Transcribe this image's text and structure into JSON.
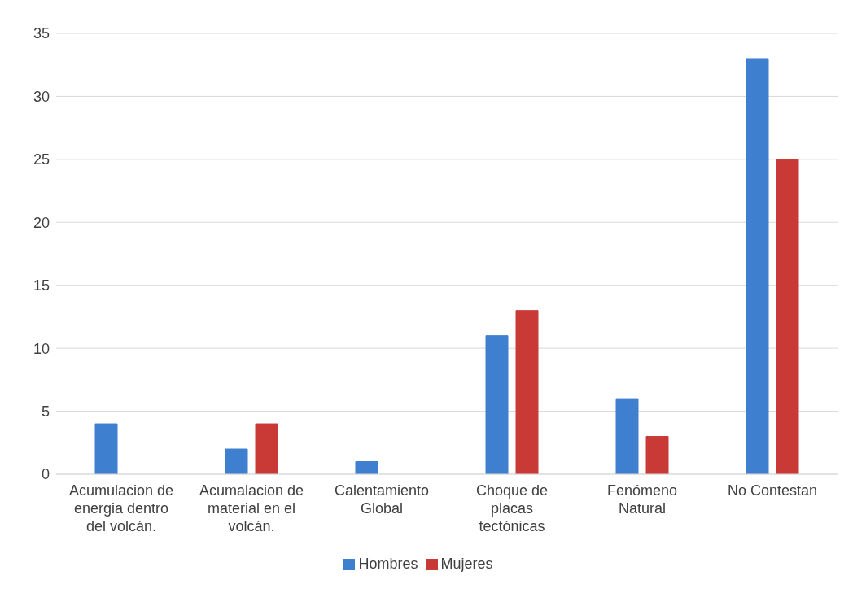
{
  "chart_data": {
    "type": "bar",
    "categories": [
      "Acumulacion de energia dentro del volcán.",
      "Acumalacion de material en el volcán.",
      "Calentamiento Global",
      "Choque de placas tectónicas",
      "Fenómeno Natural",
      "No Contestan"
    ],
    "series": [
      {
        "name": "Hombres",
        "color": "#3f7fcf",
        "values": [
          4,
          2,
          1,
          11,
          6,
          33
        ]
      },
      {
        "name": "Mujeres",
        "color": "#c93a37",
        "values": [
          null,
          4,
          null,
          13,
          3,
          25
        ]
      }
    ],
    "ylim": [
      0,
      35
    ],
    "yticks": [
      0,
      5,
      10,
      15,
      20,
      25,
      30,
      35
    ],
    "grid": "y",
    "legend": "bottom"
  }
}
